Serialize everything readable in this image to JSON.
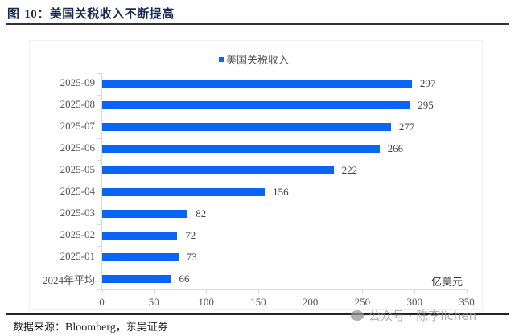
{
  "header": {
    "title_prefix": "图 ",
    "title_num": "10",
    "title_text": "：美国关税收入不断提高"
  },
  "legend": {
    "label": "美国关税收入",
    "color": "#0a64f5"
  },
  "unit_label": "亿美元",
  "source": {
    "prefix": "数据来源：",
    "text": "Bloomberg",
    "suffix": "，东吴证券"
  },
  "watermark": "公众号 · 陈李lichen",
  "chart_data": {
    "type": "bar",
    "orientation": "horizontal",
    "title": "图 10：美国关税收入不断提高",
    "xlabel": "亿美元",
    "ylabel": "",
    "xlim": [
      0,
      350
    ],
    "xticks": [
      0,
      50,
      100,
      150,
      200,
      250,
      300,
      350
    ],
    "grid": false,
    "legend_position": "top",
    "categories": [
      "2025-09",
      "2025-08",
      "2025-07",
      "2025-06",
      "2025-05",
      "2025-04",
      "2025-03",
      "2025-02",
      "2025-01",
      "2024年平均"
    ],
    "series": [
      {
        "name": "美国关税收入",
        "color": "#0a64f5",
        "values": [
          297,
          295,
          277,
          266,
          222,
          156,
          82,
          72,
          73,
          66
        ]
      }
    ],
    "xtick_labels": [
      "0",
      "50",
      "100",
      "150",
      "200",
      "250",
      "300",
      "350"
    ],
    "value_labels": [
      "297",
      "295",
      "277",
      "266",
      "222",
      "156",
      "82",
      "72",
      "73",
      "66"
    ]
  }
}
